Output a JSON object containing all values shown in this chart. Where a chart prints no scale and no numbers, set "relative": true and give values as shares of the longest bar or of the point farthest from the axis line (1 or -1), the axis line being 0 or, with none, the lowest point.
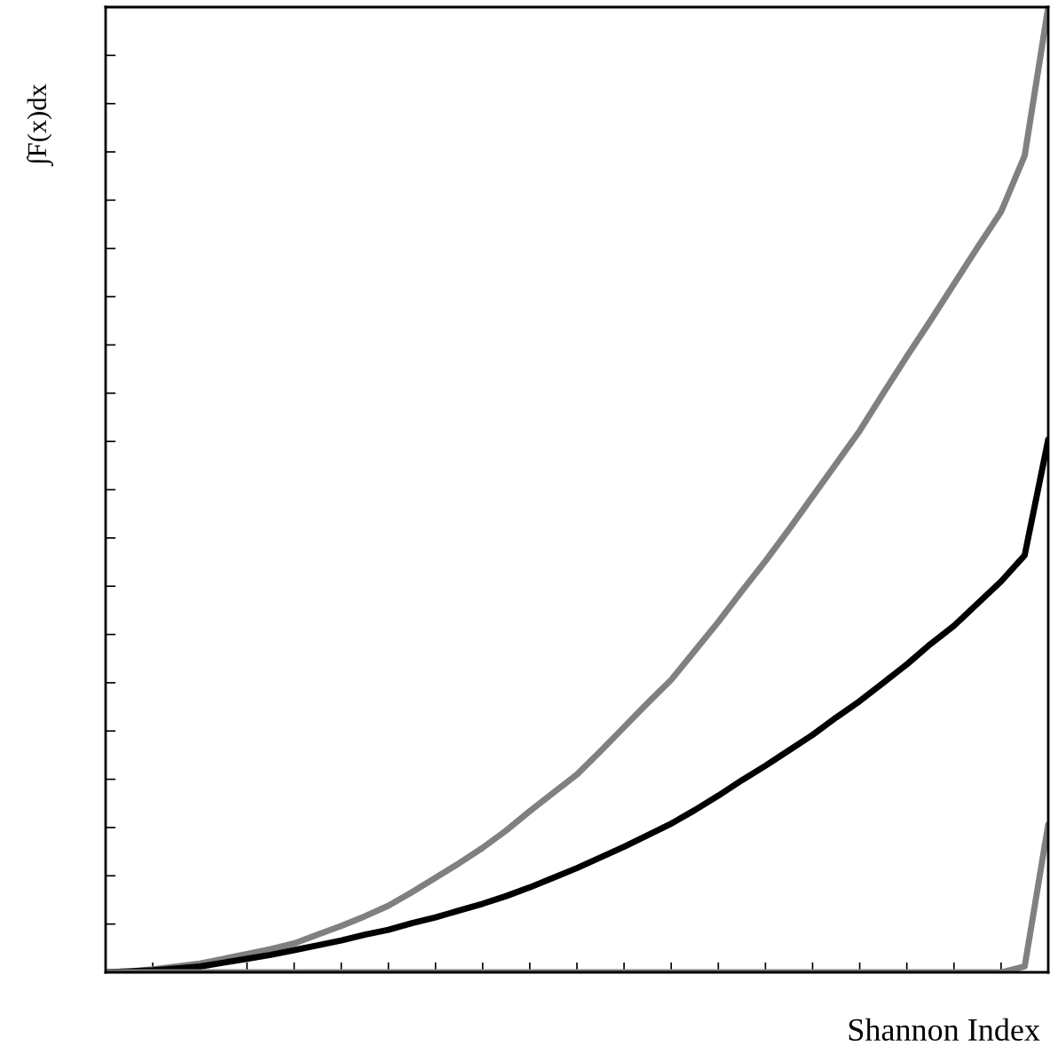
{
  "chart_data": {
    "type": "line",
    "ylabel": "∫F(x)dx",
    "xlabel": "Shannon Index",
    "relative": true,
    "tick_labels": false,
    "grid": false,
    "legend": false,
    "marker": "none",
    "line_style": "solid",
    "categories": [
      null,
      null,
      null,
      null,
      null,
      null,
      null,
      null,
      null,
      null,
      null,
      null,
      null,
      null,
      null,
      null,
      null,
      null,
      null,
      null,
      null,
      null,
      null,
      null,
      null,
      null,
      null,
      null,
      null,
      null,
      null,
      null,
      null,
      null,
      null,
      null,
      null,
      null,
      null,
      null,
      null
    ],
    "series": [
      {
        "color": "#808080",
        "values": [
          0,
          0.001,
          0.003,
          0.006,
          0.009,
          0.014,
          0.019,
          0.024,
          0.03,
          0.039,
          0.048,
          0.058,
          0.069,
          0.083,
          0.098,
          0.113,
          0.129,
          0.147,
          0.167,
          0.186,
          0.205,
          0.229,
          0.254,
          0.279,
          0.303,
          0.333,
          0.363,
          0.395,
          0.426,
          0.459,
          0.493,
          0.527,
          0.561,
          0.6,
          0.638,
          0.675,
          0.713,
          0.751,
          0.788,
          0.846,
          1.0
        ]
      },
      {
        "color": "#000000",
        "values": [
          0,
          0.001,
          0.002,
          0.004,
          0.006,
          0.01,
          0.014,
          0.018,
          0.023,
          0.028,
          0.033,
          0.039,
          0.044,
          0.051,
          0.057,
          0.064,
          0.071,
          0.079,
          0.088,
          0.098,
          0.108,
          0.119,
          0.13,
          0.142,
          0.154,
          0.168,
          0.183,
          0.199,
          0.214,
          0.23,
          0.246,
          0.264,
          0.281,
          0.3,
          0.319,
          0.34,
          0.359,
          0.382,
          0.405,
          0.432,
          0.552
        ]
      },
      {
        "color": "#808080",
        "values": [
          0,
          0,
          0,
          0,
          0,
          0,
          0,
          0,
          0,
          0,
          0,
          0,
          0,
          0,
          0,
          0,
          0,
          0,
          0,
          0,
          0,
          0,
          0,
          0,
          0,
          0,
          0,
          0,
          0,
          0,
          0,
          0,
          0,
          0,
          0,
          0,
          0,
          0,
          0,
          0.006,
          0.153
        ]
      }
    ]
  }
}
